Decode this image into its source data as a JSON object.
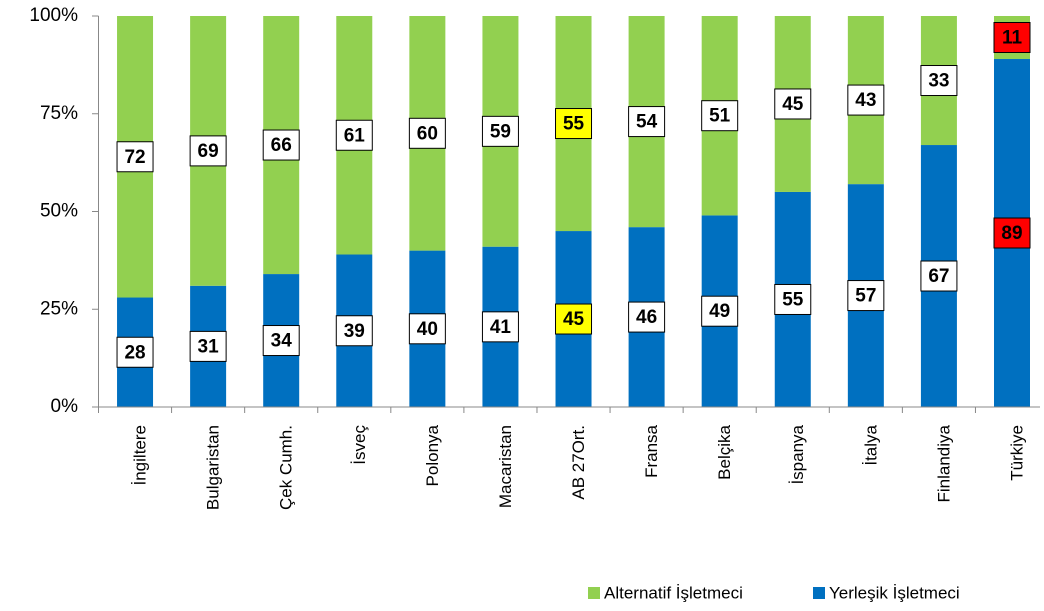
{
  "chart_data": {
    "type": "stacked_bar_100",
    "categories": [
      "İngiltere",
      "Bulgaristan",
      "Çek Cumh.",
      "İsveç",
      "Polonya",
      "Macaristan",
      "AB 27Ort.",
      "Fransa",
      "Belçika",
      "İspanya",
      "İtalya",
      "Finlandiya",
      "Türkiye"
    ],
    "series": [
      {
        "name": "Alternatif İşletmeci",
        "color": "#92d050",
        "values": [
          72,
          69,
          66,
          61,
          60,
          59,
          55,
          54,
          51,
          45,
          43,
          33,
          11
        ]
      },
      {
        "name": "Yerleşik İşletmeci",
        "color": "#0070c0",
        "values": [
          28,
          31,
          34,
          39,
          40,
          41,
          45,
          46,
          49,
          55,
          57,
          67,
          89
        ]
      }
    ],
    "label_fills": [
      "#ffffff",
      "#ffffff",
      "#ffffff",
      "#ffffff",
      "#ffffff",
      "#ffffff",
      "#ffff00",
      "#ffffff",
      "#ffffff",
      "#ffffff",
      "#ffffff",
      "#ffffff",
      "#ff0000"
    ],
    "label_text_colors": [
      "#000000",
      "#000000",
      "#000000",
      "#000000",
      "#000000",
      "#000000",
      "#000000",
      "#000000",
      "#000000",
      "#000000",
      "#000000",
      "#000000",
      "#ffffff"
    ],
    "ylim": [
      0,
      100
    ],
    "yticks": [
      {
        "value": 0,
        "label": "0%"
      },
      {
        "value": 25,
        "label": "25%"
      },
      {
        "value": 50,
        "label": "50%"
      },
      {
        "value": 75,
        "label": "75%"
      },
      {
        "value": 100,
        "label": "100%"
      }
    ],
    "legend": "bottom-right"
  }
}
